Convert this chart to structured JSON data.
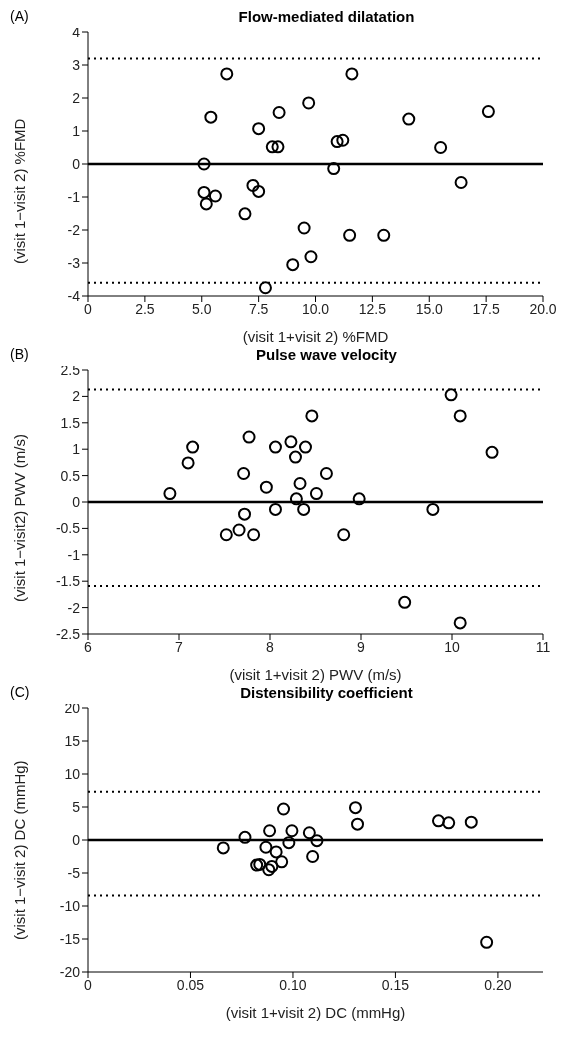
{
  "chart_data": [
    {
      "type": "scatter",
      "title": "Flow-mediated dilatation",
      "annotations": [
        "(A)"
      ],
      "xlabel": "(visit 1+visit 2) %FMD",
      "ylabel": "(visit 1−visit 2) %FMD",
      "marker": "circle",
      "grid": false,
      "legend": false,
      "xlim": [
        0,
        20
      ],
      "xticks": [
        0,
        2.5,
        {
          "value": 5,
          "label": "5.0"
        },
        7.5,
        {
          "value": 10,
          "label": "10.0"
        },
        12.5,
        {
          "value": 15,
          "label": "15.0"
        },
        17.5,
        {
          "value": 20,
          "label": "20.0"
        }
      ],
      "ylim": [
        -4,
        4
      ],
      "yticks": [
        -4,
        -3,
        -2,
        -1,
        0,
        1,
        2,
        3,
        4
      ],
      "ref_lines": [
        {
          "axis": "y",
          "value": 0,
          "line_style": "solid",
          "color": "#000000"
        },
        {
          "axis": "y",
          "value": 3.2,
          "line_style": "dotted",
          "color": "#000000"
        },
        {
          "axis": "y",
          "value": -3.6,
          "line_style": "dotted",
          "color": "#000000"
        }
      ],
      "series": [
        {
          "color": "#000000",
          "x": [
            6.1,
            11.6,
            9.7,
            8.4,
            5.4,
            14.1,
            17.6,
            7.5,
            8.1,
            8.35,
            10.95,
            11.2,
            15.5,
            5.1,
            10.8,
            16.4,
            5.1,
            5.6,
            5.2,
            7.25,
            7.5,
            6.9,
            9.5,
            11.5,
            13.0,
            9.8,
            9.0,
            7.8
          ],
          "values": [
            2.73,
            2.73,
            1.85,
            1.56,
            1.42,
            1.36,
            1.59,
            1.07,
            0.52,
            0.52,
            0.68,
            0.72,
            0.5,
            0.0,
            -0.14,
            -0.56,
            -0.86,
            -0.97,
            -1.21,
            -0.65,
            -0.83,
            -1.51,
            -1.94,
            -2.16,
            -2.16,
            -2.81,
            -3.05,
            -3.75
          ]
        }
      ]
    },
    {
      "type": "scatter",
      "title": "Pulse wave velocity",
      "annotations": [
        "(B)"
      ],
      "xlabel": "(visit 1+visit 2) PWV (m/s)",
      "ylabel": "(visit 1−visit2) PWV (m/s)",
      "marker": "circle",
      "grid": false,
      "legend": false,
      "xlim": [
        6,
        11
      ],
      "xticks": [
        6,
        7,
        8,
        9,
        10,
        11
      ],
      "ylim": [
        -2.5,
        2.5
      ],
      "yticks": [
        -2.5,
        -2,
        -1.5,
        -1,
        -0.5,
        0,
        0.5,
        1,
        1.5,
        2,
        2.5
      ],
      "ref_lines": [
        {
          "axis": "y",
          "value": 0,
          "line_style": "solid",
          "color": "#000000"
        },
        {
          "axis": "y",
          "value": 2.13,
          "line_style": "dotted",
          "color": "#000000"
        },
        {
          "axis": "y",
          "value": -1.59,
          "line_style": "dotted",
          "color": "#000000"
        }
      ],
      "series": [
        {
          "color": "#000000",
          "x": [
            6.9,
            7.15,
            7.1,
            7.77,
            7.71,
            7.72,
            7.52,
            7.66,
            7.82,
            7.96,
            8.06,
            8.06,
            8.23,
            8.39,
            8.28,
            8.33,
            8.29,
            8.37,
            8.51,
            8.46,
            8.62,
            8.81,
            8.98,
            9.79,
            9.99,
            10.09,
            10.44,
            9.48,
            10.09
          ],
          "values": [
            0.16,
            1.04,
            0.74,
            1.23,
            0.54,
            -0.23,
            -0.62,
            -0.53,
            -0.62,
            0.28,
            1.04,
            -0.14,
            1.14,
            1.04,
            0.85,
            0.35,
            0.06,
            -0.14,
            0.16,
            1.63,
            0.54,
            -0.62,
            0.06,
            -0.14,
            2.03,
            1.63,
            0.94,
            -1.9,
            -2.29
          ]
        }
      ]
    },
    {
      "type": "scatter",
      "title": "Distensibility coefficient",
      "annotations": [
        "(C)"
      ],
      "xlabel": "(visit 1+visit 2) DC (mmHg)",
      "ylabel": "(visit 1−visit 2) DC (mmHg)",
      "marker": "circle",
      "grid": false,
      "legend": false,
      "xlim": [
        0,
        0.222
      ],
      "xticks": [
        0,
        0.05,
        {
          "value": 0.1,
          "label": "0.10"
        },
        0.15,
        {
          "value": 0.2,
          "label": "0.20"
        }
      ],
      "ylim": [
        -20,
        20
      ],
      "yticks": [
        -20,
        -15,
        -10,
        -5,
        0,
        5,
        10,
        15,
        20
      ],
      "ref_lines": [
        {
          "axis": "y",
          "value": 0,
          "line_style": "solid",
          "color": "#000000"
        },
        {
          "axis": "y",
          "value": 7.3,
          "line_style": "dotted",
          "color": "#000000"
        },
        {
          "axis": "y",
          "value": -8.4,
          "line_style": "dotted",
          "color": "#000000"
        }
      ],
      "series": [
        {
          "color": "#000000",
          "x": [
            0.066,
            0.0766,
            0.0886,
            0.0954,
            0.0995,
            0.098,
            0.108,
            0.1117,
            0.1096,
            0.0868,
            0.0918,
            0.0945,
            0.0897,
            0.0882,
            0.0823,
            0.0838,
            0.1305,
            0.1315,
            0.171,
            0.176,
            0.187,
            0.1945
          ],
          "values": [
            -1.2,
            0.4,
            1.4,
            4.7,
            1.4,
            -0.4,
            1.1,
            -0.1,
            -2.5,
            -1.1,
            -1.8,
            -3.3,
            -4.0,
            -4.5,
            -3.8,
            -3.7,
            4.9,
            2.4,
            2.9,
            2.6,
            2.7,
            -15.5
          ]
        }
      ]
    }
  ]
}
